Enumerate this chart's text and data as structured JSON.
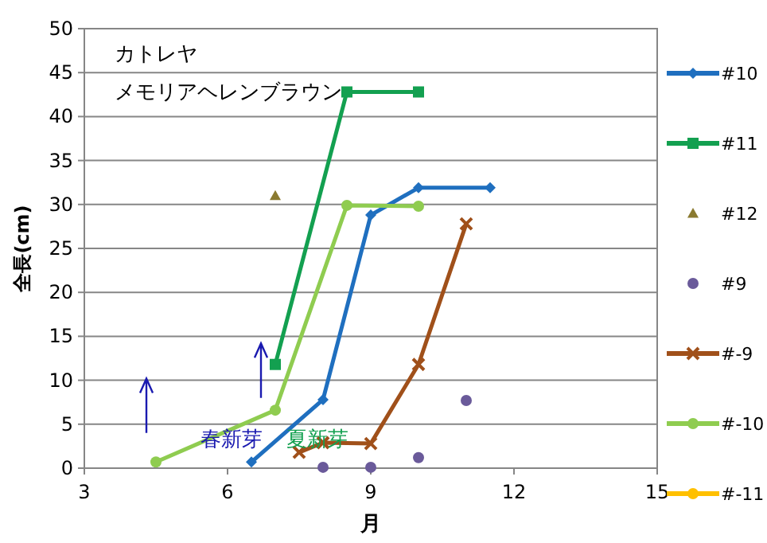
{
  "chart_data": {
    "type": "line",
    "xlabel": "月",
    "ylabel": "全長(cm)",
    "annotations": [
      "カトレヤ",
      "メモリアヘレンブラウン",
      "春新芽",
      "夏新芽"
    ],
    "xlim": [
      3,
      15
    ],
    "xticks": [
      3,
      6,
      9,
      12,
      15
    ],
    "ylim": [
      0,
      50
    ],
    "yticks": [
      0,
      5,
      10,
      15,
      20,
      25,
      30,
      35,
      40,
      45,
      50
    ],
    "grid": "y",
    "legend": "right",
    "series": [
      {
        "name": "#10",
        "color": "#1f6fbf",
        "marker": "diamond",
        "x": [
          6.5,
          8,
          9,
          10,
          11.5
        ],
        "values": [
          0.7,
          7.8,
          28.8,
          31.9,
          31.9
        ]
      },
      {
        "name": "#11",
        "color": "#13a050",
        "marker": "square",
        "x": [
          7,
          8.5,
          10
        ],
        "values": [
          11.8,
          42.8,
          42.8
        ]
      },
      {
        "name": "#12",
        "color": "#8a7a30",
        "marker": "triangle",
        "type": "scatter",
        "x": [
          7
        ],
        "values": [
          31
        ]
      },
      {
        "name": "#9",
        "color": "#6a5a9a",
        "marker": "circle",
        "type": "scatter",
        "x": [
          8,
          9,
          10,
          11
        ],
        "values": [
          0.1,
          0.1,
          1.2,
          7.7
        ]
      },
      {
        "name": "#-9",
        "color": "#a0501a",
        "marker": "cross",
        "x": [
          7.5,
          8,
          9,
          10,
          11
        ],
        "values": [
          1.8,
          2.9,
          2.8,
          11.8,
          27.8
        ]
      },
      {
        "name": "#-10",
        "color": "#8fcc50",
        "marker": "circle",
        "x": [
          4.5,
          7,
          8.5,
          10
        ],
        "values": [
          0.7,
          6.6,
          29.9,
          29.8
        ]
      },
      {
        "name": "#-11",
        "color": "#ffc000",
        "marker": "circle"
      }
    ]
  }
}
